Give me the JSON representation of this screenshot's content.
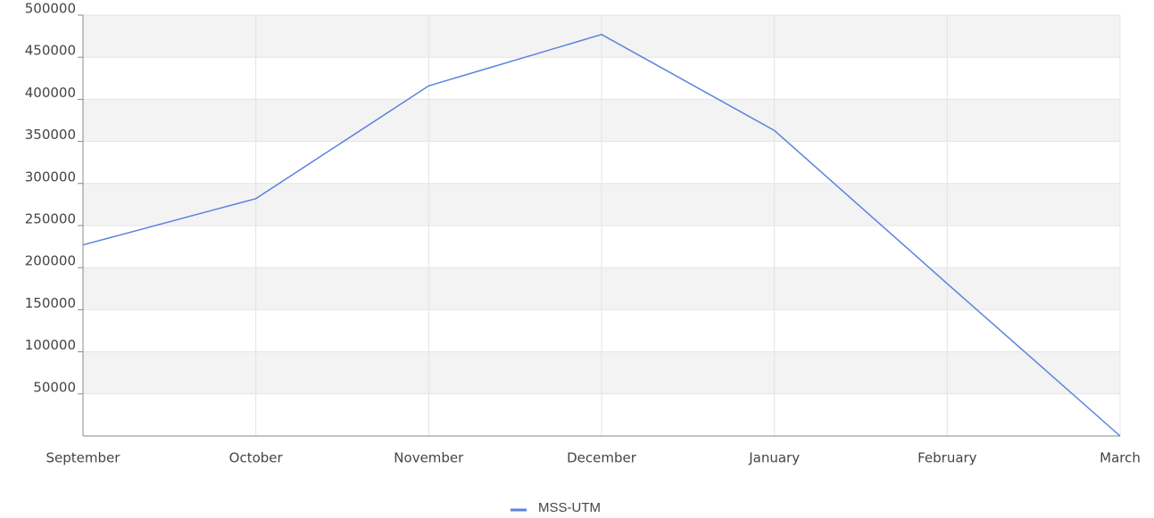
{
  "chart_data": {
    "type": "line",
    "categories": [
      "September",
      "October",
      "November",
      "December",
      "January",
      "February",
      "March"
    ],
    "series": [
      {
        "name": "MSS-UTM",
        "color": "#5b82e0",
        "values": [
          227000,
          282000,
          416000,
          477000,
          363000,
          181000,
          0
        ]
      }
    ],
    "ylim": [
      0,
      500000
    ],
    "yticks": [
      50000,
      100000,
      150000,
      200000,
      250000,
      300000,
      350000,
      400000,
      450000,
      500000
    ],
    "grid": true,
    "banded": true,
    "legend": "bottom"
  }
}
